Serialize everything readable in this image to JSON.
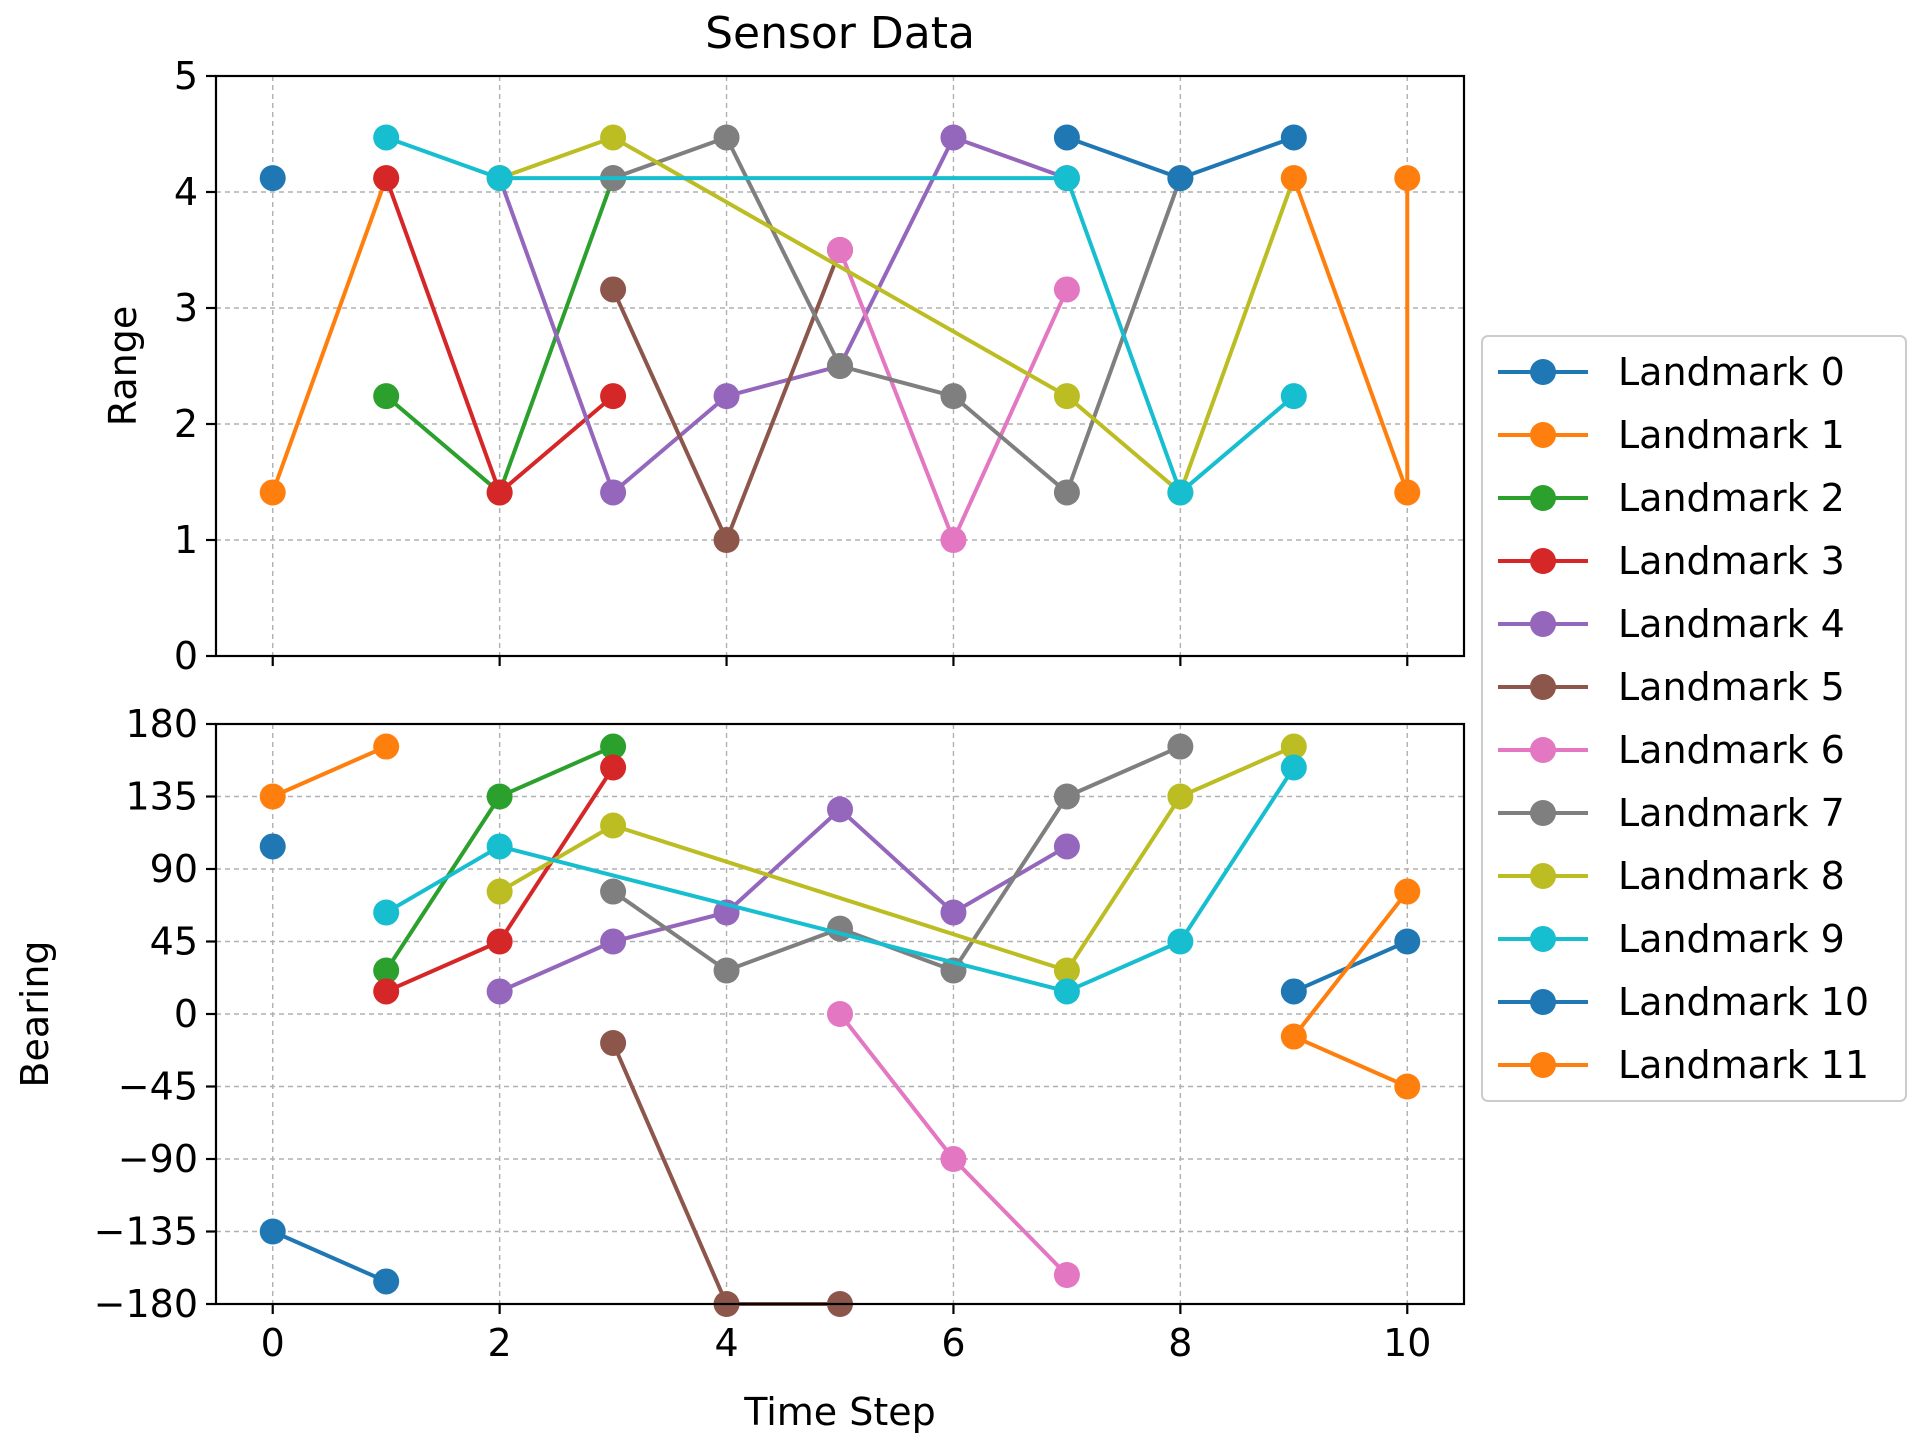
{
  "chart_data": {
    "type": "line",
    "title": "Sensor Data",
    "xlabel": "Time Step",
    "grid": true,
    "legend_placement": "right",
    "x_ticks": [
      0,
      2,
      4,
      6,
      8,
      10
    ],
    "xlim": [
      -0.5,
      10.5
    ],
    "panels": [
      {
        "key": "range",
        "ylabel": "Range",
        "ylim": [
          0,
          5
        ],
        "y_ticks": [
          0,
          1,
          2,
          3,
          4,
          5
        ],
        "y_tick_labels": [
          "0",
          "1",
          "2",
          "3",
          "4",
          "5"
        ]
      },
      {
        "key": "bearing",
        "ylabel": "Bearing",
        "ylim": [
          -180,
          180
        ],
        "y_ticks": [
          180,
          135,
          90,
          45,
          0,
          -45,
          -90,
          -135,
          -180
        ],
        "y_tick_labels": [
          "180",
          "135",
          "90",
          "45",
          "0",
          "−45",
          "−90",
          "−135",
          "−180"
        ]
      }
    ],
    "series": [
      {
        "name": "Landmark 0",
        "color": "#1f77b4",
        "range": [
          [
            0,
            4.12
          ]
        ],
        "bearing": [
          [
            0,
            104
          ],
          [
            0,
            -135
          ],
          [
            1,
            -166
          ]
        ]
      },
      {
        "name": "Landmark 1",
        "color": "#ff7f0e",
        "range": [
          [
            0,
            1.41
          ],
          [
            1,
            4.12
          ]
        ],
        "bearing": [
          [
            0,
            135
          ],
          [
            1,
            166
          ]
        ]
      },
      {
        "name": "Landmark 2",
        "color": "#2ca02c",
        "range": [
          [
            1,
            2.24
          ],
          [
            2,
            1.41
          ],
          [
            3,
            4.12
          ]
        ],
        "bearing": [
          [
            1,
            27
          ],
          [
            2,
            135
          ],
          [
            3,
            166
          ]
        ]
      },
      {
        "name": "Landmark 3",
        "color": "#d62728",
        "range": [
          [
            1,
            4.12
          ],
          [
            2,
            1.41
          ],
          [
            3,
            2.24
          ]
        ],
        "bearing": [
          [
            1,
            14
          ],
          [
            2,
            45
          ],
          [
            3,
            153
          ]
        ]
      },
      {
        "name": "Landmark 4",
        "color": "#9467bd",
        "range": [
          [
            2,
            4.12
          ],
          [
            3,
            1.41
          ],
          [
            4,
            2.24
          ],
          [
            5,
            2.5
          ],
          [
            6,
            4.47
          ],
          [
            7,
            4.12
          ]
        ],
        "bearing": [
          [
            2,
            14
          ],
          [
            3,
            45
          ],
          [
            4,
            63
          ],
          [
            5,
            127
          ],
          [
            6,
            63
          ],
          [
            7,
            104
          ]
        ]
      },
      {
        "name": "Landmark 5",
        "color": "#8c564b",
        "range": [
          [
            3,
            3.16
          ],
          [
            4,
            1.0
          ],
          [
            5,
            3.5
          ]
        ],
        "bearing": [
          [
            3,
            -18
          ],
          [
            4,
            -180
          ],
          [
            5,
            -180
          ]
        ]
      },
      {
        "name": "Landmark 6",
        "color": "#e377c2",
        "range": [
          [
            5,
            3.5
          ],
          [
            6,
            1.0
          ],
          [
            7,
            3.16
          ]
        ],
        "bearing": [
          [
            5,
            0
          ],
          [
            6,
            -90
          ],
          [
            7,
            -162
          ]
        ]
      },
      {
        "name": "Landmark 7",
        "color": "#7f7f7f",
        "range": [
          [
            3,
            4.12
          ],
          [
            4,
            4.47
          ],
          [
            5,
            2.5
          ],
          [
            6,
            2.24
          ],
          [
            7,
            1.41
          ],
          [
            8,
            4.12
          ]
        ],
        "bearing": [
          [
            3,
            76
          ],
          [
            4,
            27
          ],
          [
            5,
            53
          ],
          [
            6,
            27
          ],
          [
            7,
            135
          ],
          [
            8,
            166
          ]
        ]
      },
      {
        "name": "Landmark 8",
        "color": "#bcbd22",
        "range": [
          [
            2,
            4.12
          ],
          [
            3,
            4.47
          ],
          [
            7,
            2.24
          ],
          [
            8,
            1.41
          ],
          [
            9,
            4.12
          ]
        ],
        "bearing": [
          [
            2,
            76
          ],
          [
            3,
            117
          ],
          [
            7,
            27
          ],
          [
            8,
            135
          ],
          [
            9,
            166
          ]
        ]
      },
      {
        "name": "Landmark 9",
        "color": "#17becf",
        "range": [
          [
            1,
            4.47
          ],
          [
            2,
            4.12
          ],
          [
            7,
            4.12
          ],
          [
            8,
            1.41
          ],
          [
            9,
            2.24
          ]
        ],
        "bearing": [
          [
            1,
            63
          ],
          [
            2,
            104
          ],
          [
            7,
            14
          ],
          [
            8,
            45
          ],
          [
            9,
            153
          ]
        ]
      },
      {
        "name": "Landmark 10",
        "color": "#1f77b4",
        "range": [
          [
            7,
            4.47
          ],
          [
            8,
            4.12
          ],
          [
            9,
            4.47
          ]
        ],
        "bearing": [
          [
            9,
            14
          ],
          [
            10,
            45
          ]
        ]
      },
      {
        "name": "Landmark 11",
        "color": "#ff7f0e",
        "range": [
          [
            9,
            4.12
          ],
          [
            10,
            1.41
          ],
          [
            10,
            4.12
          ]
        ],
        "bearing": [
          [
            10,
            76
          ],
          [
            9,
            -14
          ],
          [
            10,
            -45
          ]
        ]
      }
    ]
  }
}
